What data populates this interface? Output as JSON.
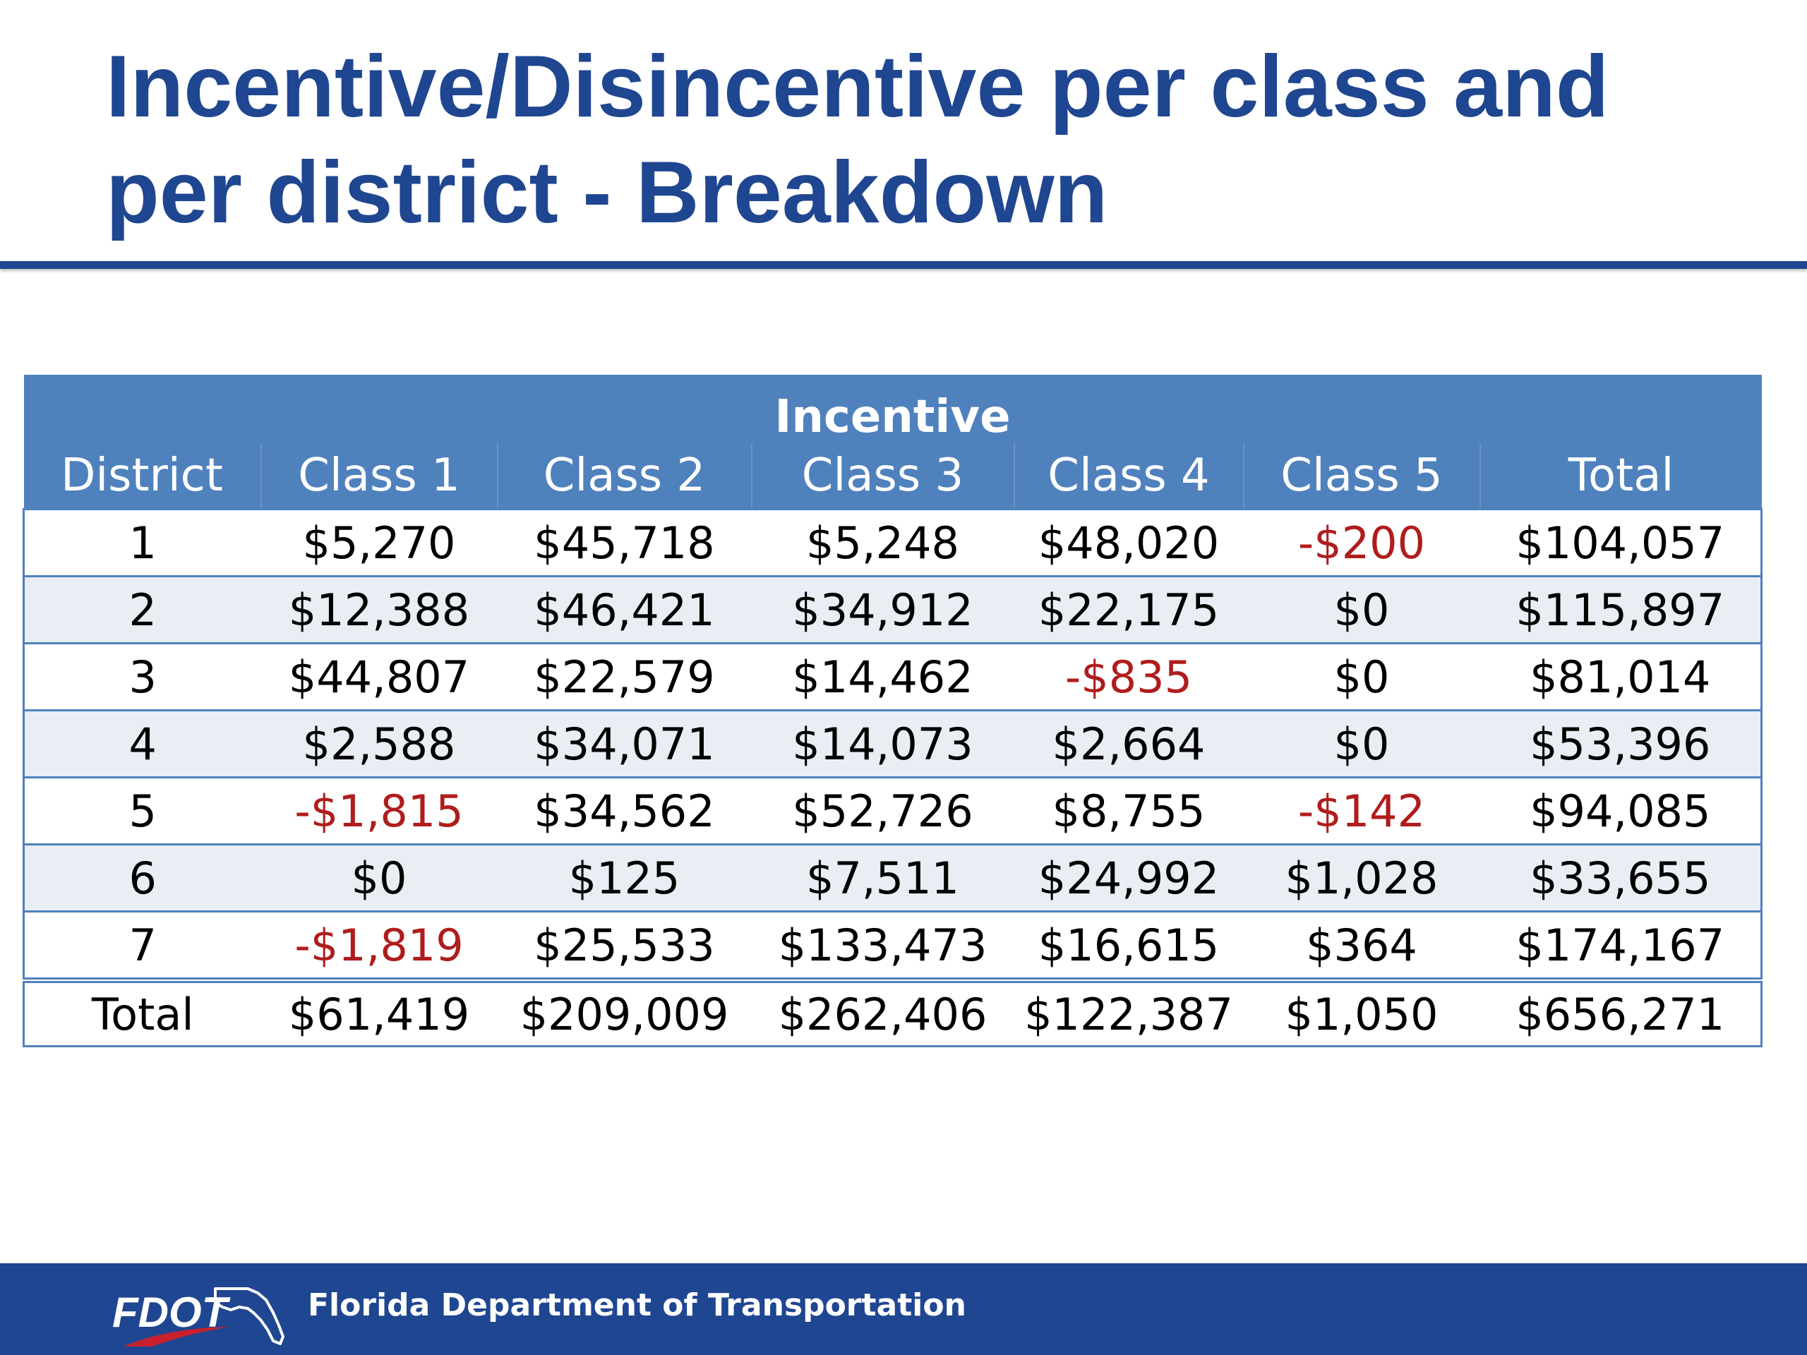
{
  "title": {
    "line1": "Incentive/Disincentive per class and",
    "line2": "per district - Breakdown"
  },
  "table": {
    "group_header": "Incentive",
    "columns": [
      "District",
      "Class 1",
      "Class 2",
      "Class 3",
      "Class 4",
      "Class 5",
      "Total"
    ],
    "rows": [
      [
        "1",
        "$5,270",
        "$45,718",
        "$5,248",
        "$48,020",
        "-$200",
        "$104,057"
      ],
      [
        "2",
        "$12,388",
        "$46,421",
        "$34,912",
        "$22,175",
        "$0",
        "$115,897"
      ],
      [
        "3",
        "$44,807",
        "$22,579",
        "$14,462",
        "-$835",
        "$0",
        "$81,014"
      ],
      [
        "4",
        "$2,588",
        "$34,071",
        "$14,073",
        "$2,664",
        "$0",
        "$53,396"
      ],
      [
        "5",
        "-$1,815",
        "$34,562",
        "$52,726",
        "$8,755",
        "-$142",
        "$94,085"
      ],
      [
        "6",
        "$0",
        "$125",
        "$7,511",
        "$24,992",
        "$1,028",
        "$33,655"
      ],
      [
        "7",
        "-$1,819",
        "$25,533",
        "$133,473",
        "$16,615",
        "$364",
        "$174,167"
      ]
    ],
    "total_row": [
      "Total",
      "$61,419",
      "$209,009",
      "$262,406",
      "$122,387",
      "$1,050",
      "$656,271"
    ]
  },
  "footer": {
    "logo_text": "FDOT",
    "org_name": "Florida Department of Transportation"
  },
  "colors": {
    "title": "#1F4690",
    "header_bg": "#4F81BD",
    "band_bg": "#E9EDF4",
    "negative": "#B01C1C",
    "footer_bg": "#1F4690"
  }
}
